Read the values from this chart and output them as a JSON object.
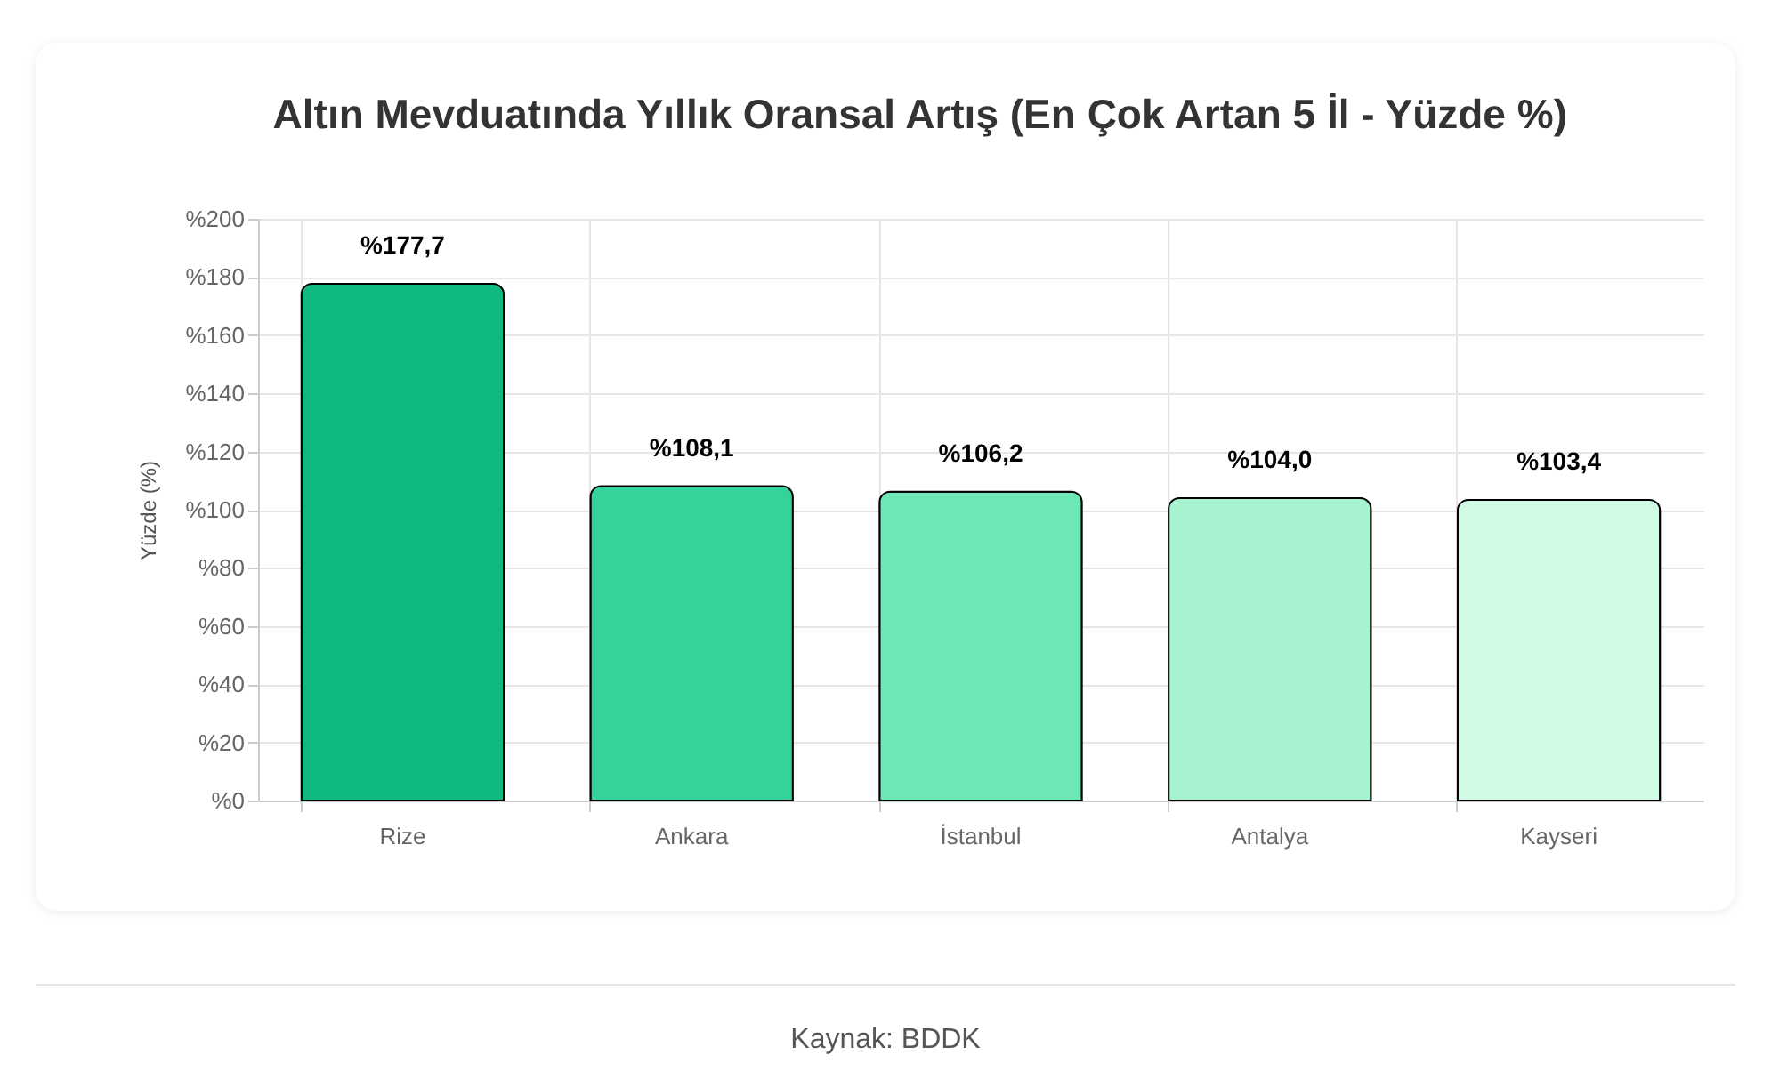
{
  "chart_data": {
    "type": "bar",
    "title": "Altın Mevduatında Yıllık Oransal Artış (En Çok Artan 5 İl - Yüzde %)",
    "ylabel": "Yüzde (%)",
    "categories": [
      "Rize",
      "Ankara",
      "İstanbul",
      "Antalya",
      "Kayseri"
    ],
    "values": [
      177.7,
      108.1,
      106.2,
      104.0,
      103.4
    ],
    "colors": [
      "#10b981",
      "#34d399",
      "#6ee7b7",
      "#a7f3d0",
      "#d1fae5"
    ],
    "value_labels": [
      "%177,7",
      "%108,1",
      "%106,2",
      "%104,0",
      "%103,4"
    ],
    "ylim": [
      0,
      200
    ],
    "yticks": [
      {
        "value": 0,
        "label": "%0"
      },
      {
        "value": 20,
        "label": "%20"
      },
      {
        "value": 40,
        "label": "%40"
      },
      {
        "value": 60,
        "label": "%60"
      },
      {
        "value": 80,
        "label": "%80"
      },
      {
        "value": 100,
        "label": "%100"
      },
      {
        "value": 120,
        "label": "%120"
      },
      {
        "value": 140,
        "label": "%140"
      },
      {
        "value": 160,
        "label": "%160"
      },
      {
        "value": 180,
        "label": "%180"
      },
      {
        "value": 200,
        "label": "%200"
      }
    ],
    "grid": true,
    "annotations": [
      "Kaynak: BDDK"
    ]
  }
}
